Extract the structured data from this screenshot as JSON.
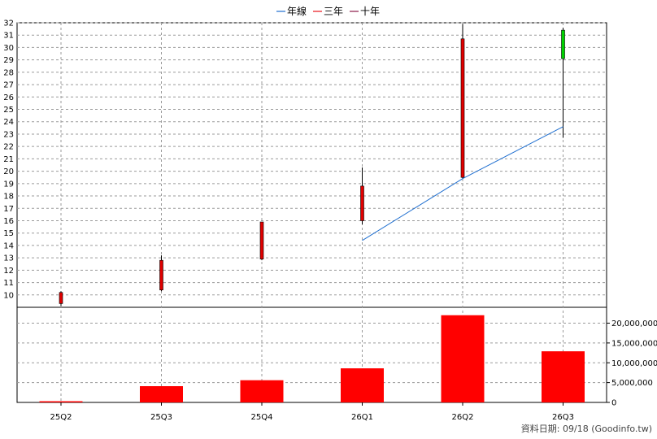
{
  "chart_data": {
    "type": "candlestick+bar",
    "legend": [
      {
        "name": "年線",
        "color": "#1f6fd0"
      },
      {
        "name": "三年",
        "color": "#e8141c"
      },
      {
        "name": "十年",
        "color": "#8b1a4a"
      }
    ],
    "categories": [
      "25Q2",
      "25Q3",
      "25Q4",
      "26Q1",
      "26Q2",
      "26Q3"
    ],
    "price": {
      "ylim": [
        9,
        32
      ],
      "ticks": [
        10,
        11,
        12,
        13,
        14,
        15,
        16,
        17,
        18,
        19,
        20,
        21,
        22,
        23,
        24,
        25,
        26,
        27,
        28,
        29,
        30,
        31,
        32
      ],
      "candles": [
        {
          "open": 10.2,
          "close": 9.3,
          "high": 10.3,
          "low": 9.1
        },
        {
          "open": 12.8,
          "close": 10.4,
          "high": 13.2,
          "low": 10.3
        },
        {
          "open": 15.9,
          "close": 12.9,
          "high": 15.9,
          "low": 12.8
        },
        {
          "open": 18.8,
          "close": 16.0,
          "high": 20.3,
          "low": 15.7
        },
        {
          "open": 30.7,
          "close": 19.5,
          "high": 31.9,
          "low": 19.4
        },
        {
          "open": 29.1,
          "close": 31.4,
          "high": 31.6,
          "low": 22.7
        }
      ],
      "annual_line": [
        null,
        null,
        null,
        14.4,
        19.4,
        23.6
      ]
    },
    "volume": {
      "ylim": [
        0,
        24000000
      ],
      "ticks": [
        0,
        5000000,
        10000000,
        15000000,
        20000000
      ],
      "tick_labels": [
        "0",
        "5,000,000",
        "10,000,000",
        "15,000,000",
        "20,000,000"
      ],
      "values": [
        300000,
        4100000,
        5600000,
        8600000,
        22000000,
        12900000
      ]
    },
    "colors": {
      "candle_down": "#e00000",
      "candle_up": "#00d000",
      "volume_bar": "#ff0000",
      "grid": "#9a9a9a"
    }
  },
  "footer": "資料日期: 09/18 (Goodinfo.tw)"
}
